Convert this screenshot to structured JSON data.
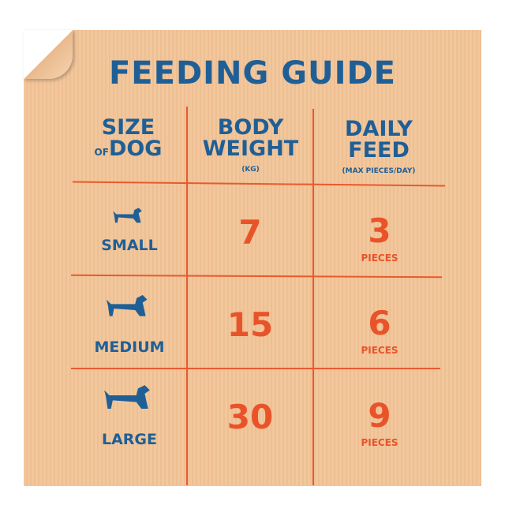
{
  "title": "FEEDING GUIDE",
  "headers": [
    {
      "line1": "SIZE",
      "of": "OF",
      "line2": "DOG"
    },
    {
      "line1": "BODY",
      "line2": "WEIGHT",
      "sub": "(KG)"
    },
    {
      "line1": "DAILY",
      "line2": "FEED",
      "sub": "(MAX PIECES/DAY)"
    }
  ],
  "rows": [
    {
      "size": "SMALL",
      "icon": "small-dog-icon",
      "weight": "7",
      "feed": "3",
      "unit": "PIECES"
    },
    {
      "size": "MEDIUM",
      "icon": "medium-dog-icon",
      "weight": "15",
      "feed": "6",
      "unit": "PIECES"
    },
    {
      "size": "LARGE",
      "icon": "large-dog-icon",
      "weight": "30",
      "feed": "9",
      "unit": "PIECES"
    }
  ],
  "colors": {
    "blue": "#1f5f96",
    "orange": "#e9532a",
    "paper": "#f2c79c"
  }
}
